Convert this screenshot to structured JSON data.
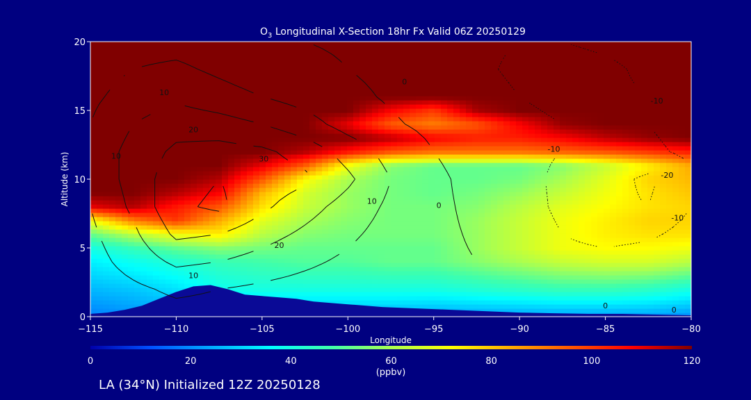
{
  "chart_data": {
    "type": "heatmap",
    "title_prefix": "O",
    "title_sub": "3",
    "title_rest": " Longitudinal X-Section 18hr  Fx Valid 06Z 20250129",
    "xlabel": "Longitude",
    "ylabel": "Altitude (km)",
    "xlim": [
      -115,
      -80
    ],
    "ylim": [
      0,
      20
    ],
    "x_ticks": [
      -115,
      -110,
      -105,
      -100,
      -95,
      -90,
      -85,
      -80
    ],
    "x_tick_labels": [
      "−115",
      "−110",
      "−105",
      "−100",
      "−95",
      "−90",
      "−85",
      "−80"
    ],
    "y_ticks": [
      0,
      5,
      10,
      15,
      20
    ],
    "y_tick_labels": [
      "0",
      "5",
      "10",
      "15",
      "20"
    ],
    "colorbar": {
      "min": 0,
      "max": 120,
      "ticks": [
        0,
        20,
        40,
        60,
        80,
        100,
        120
      ],
      "tick_labels": [
        "0",
        "20",
        "40",
        "60",
        "80",
        "100",
        "120"
      ],
      "unit": "(ppbv)",
      "colors": [
        "#0000aa",
        "#0050ff",
        "#00aaff",
        "#00ffff",
        "#40ffaa",
        "#aaff50",
        "#ffff00",
        "#ffaa00",
        "#ff5500",
        "#ff0000",
        "#800000"
      ]
    },
    "terrain": {
      "x": [
        -115,
        -114,
        -113,
        -112,
        -111,
        -110,
        -109,
        -108,
        -107,
        -106,
        -105,
        -104,
        -103,
        -102,
        -101,
        -100,
        -98,
        -96,
        -94,
        -92,
        -90,
        -88,
        -86,
        -84,
        -82,
        -80
      ],
      "y": [
        0.2,
        0.3,
        0.5,
        0.8,
        1.3,
        1.8,
        2.2,
        2.3,
        2.0,
        1.6,
        1.5,
        1.4,
        1.3,
        1.1,
        1.0,
        0.9,
        0.7,
        0.6,
        0.5,
        0.4,
        0.3,
        0.25,
        0.2,
        0.2,
        0.15,
        0.1
      ]
    },
    "ozone_grid": {
      "x": [
        -115,
        -112.5,
        -110,
        -107.5,
        -105,
        -102.5,
        -100,
        -97.5,
        -95,
        -92.5,
        -90,
        -87.5,
        -85,
        -82.5,
        -80
      ],
      "y": [
        0,
        2,
        4,
        5,
        6,
        7,
        8,
        9,
        10,
        11,
        12,
        13,
        14,
        15,
        16,
        18,
        20
      ],
      "values": [
        [
          18,
          20,
          22,
          24,
          24,
          24,
          24,
          24,
          22,
          22,
          22,
          22,
          22,
          22,
          20
        ],
        [
          26,
          28,
          32,
          38,
          40,
          40,
          40,
          40,
          40,
          42,
          44,
          46,
          46,
          44,
          40
        ],
        [
          34,
          38,
          42,
          46,
          48,
          50,
          50,
          52,
          52,
          56,
          60,
          64,
          66,
          66,
          62
        ],
        [
          40,
          46,
          52,
          56,
          54,
          52,
          52,
          52,
          52,
          58,
          64,
          70,
          72,
          72,
          70
        ],
        [
          52,
          62,
          70,
          74,
          62,
          56,
          54,
          54,
          54,
          58,
          64,
          70,
          74,
          76,
          76
        ],
        [
          70,
          90,
          100,
          84,
          68,
          60,
          56,
          54,
          54,
          58,
          64,
          70,
          74,
          78,
          78
        ],
        [
          110,
          115,
          105,
          96,
          76,
          64,
          58,
          54,
          54,
          56,
          62,
          68,
          72,
          76,
          78
        ],
        [
          120,
          120,
          115,
          108,
          82,
          66,
          58,
          54,
          52,
          54,
          58,
          64,
          70,
          76,
          80
        ],
        [
          120,
          120,
          120,
          115,
          96,
          72,
          60,
          54,
          52,
          52,
          54,
          60,
          68,
          78,
          82
        ],
        [
          120,
          120,
          120,
          120,
          110,
          95,
          70,
          56,
          52,
          52,
          52,
          56,
          64,
          74,
          84
        ],
        [
          120,
          120,
          120,
          120,
          120,
          115,
          105,
          96,
          92,
          92,
          92,
          94,
          96,
          100,
          104
        ],
        [
          120,
          120,
          120,
          120,
          120,
          120,
          120,
          115,
          108,
          104,
          104,
          108,
          114,
          118,
          120
        ],
        [
          120,
          120,
          120,
          120,
          120,
          120,
          110,
          95,
          90,
          96,
          108,
          118,
          120,
          120,
          120
        ],
        [
          120,
          120,
          120,
          120,
          120,
          120,
          120,
          108,
          100,
          116,
          120,
          120,
          120,
          120,
          120
        ],
        [
          120,
          120,
          120,
          120,
          120,
          120,
          120,
          120,
          120,
          120,
          120,
          120,
          120,
          120,
          120
        ],
        [
          120,
          120,
          120,
          120,
          120,
          120,
          120,
          120,
          120,
          120,
          120,
          120,
          120,
          120,
          120
        ],
        [
          120,
          120,
          120,
          120,
          120,
          120,
          120,
          120,
          120,
          120,
          120,
          120,
          120,
          120,
          120
        ]
      ]
    },
    "anomaly_grid": {
      "x": [
        -115,
        -112.5,
        -110,
        -107.5,
        -105,
        -102.5,
        -100,
        -97.5,
        -95,
        -92.5,
        -90,
        -87.5,
        -85,
        -82.5,
        -80
      ],
      "y": [
        0,
        2,
        4,
        6,
        8,
        10,
        12,
        14,
        16,
        18,
        20
      ],
      "values": [
        [
          2,
          4,
          6,
          6,
          4,
          3,
          2,
          1,
          0,
          0,
          0,
          -1,
          -1,
          0,
          0
        ],
        [
          4,
          8,
          12,
          10,
          8,
          6,
          4,
          2,
          1,
          0,
          -1,
          -2,
          -2,
          -1,
          0
        ],
        [
          6,
          14,
          22,
          20,
          16,
          12,
          8,
          4,
          2,
          0,
          -3,
          -6,
          -6,
          -4,
          -2
        ],
        [
          8,
          18,
          32,
          30,
          24,
          18,
          12,
          6,
          2,
          -1,
          -5,
          -10,
          -14,
          -12,
          -6
        ],
        [
          10,
          22,
          38,
          42,
          32,
          24,
          16,
          8,
          2,
          -2,
          -6,
          -12,
          -18,
          -20,
          -10
        ],
        [
          12,
          24,
          36,
          40,
          36,
          32,
          22,
          10,
          2,
          -3,
          -7,
          -12,
          -16,
          -22,
          -12
        ],
        [
          12,
          24,
          32,
          34,
          32,
          26,
          16,
          6,
          0,
          -4,
          -8,
          -10,
          -12,
          -12,
          -8
        ],
        [
          10,
          20,
          26,
          24,
          20,
          14,
          6,
          1,
          -2,
          -5,
          -8,
          -10,
          -10,
          -10,
          -6
        ],
        [
          8,
          14,
          18,
          14,
          10,
          6,
          2,
          -1,
          -3,
          -6,
          -10,
          -12,
          -12,
          -10,
          -6
        ],
        [
          6,
          10,
          12,
          8,
          4,
          2,
          0,
          -2,
          -4,
          -8,
          -12,
          -14,
          -12,
          -8,
          -4
        ],
        [
          4,
          6,
          6,
          4,
          2,
          0,
          -1,
          -3,
          -5,
          -8,
          -10,
          -10,
          -8,
          -6,
          -4
        ]
      ]
    },
    "contour_levels": [
      -20,
      -10,
      0,
      10,
      20,
      30,
      40
    ],
    "contour_labels": [
      {
        "x": -113.5,
        "y": 11.5,
        "text": "10"
      },
      {
        "x": -110.7,
        "y": 16.1,
        "text": "10"
      },
      {
        "x": -109.0,
        "y": 13.4,
        "text": "20"
      },
      {
        "x": -104.9,
        "y": 11.3,
        "text": "30"
      },
      {
        "x": -109.0,
        "y": 2.8,
        "text": "10"
      },
      {
        "x": -104.0,
        "y": 5.0,
        "text": "20"
      },
      {
        "x": -98.6,
        "y": 8.2,
        "text": "10"
      },
      {
        "x": -94.7,
        "y": 7.9,
        "text": "0"
      },
      {
        "x": -96.7,
        "y": 16.9,
        "text": "0"
      },
      {
        "x": -88.0,
        "y": 12.0,
        "text": "-10"
      },
      {
        "x": -82.0,
        "y": 15.5,
        "text": "-10"
      },
      {
        "x": -81.4,
        "y": 10.1,
        "text": "-20"
      },
      {
        "x": -80.8,
        "y": 7.0,
        "text": "-10"
      },
      {
        "x": -85.0,
        "y": 0.6,
        "text": "0"
      },
      {
        "x": -81.0,
        "y": 0.3,
        "text": "0"
      }
    ]
  },
  "footer_text": "LA (34°N) Initialized 12Z 20250128"
}
